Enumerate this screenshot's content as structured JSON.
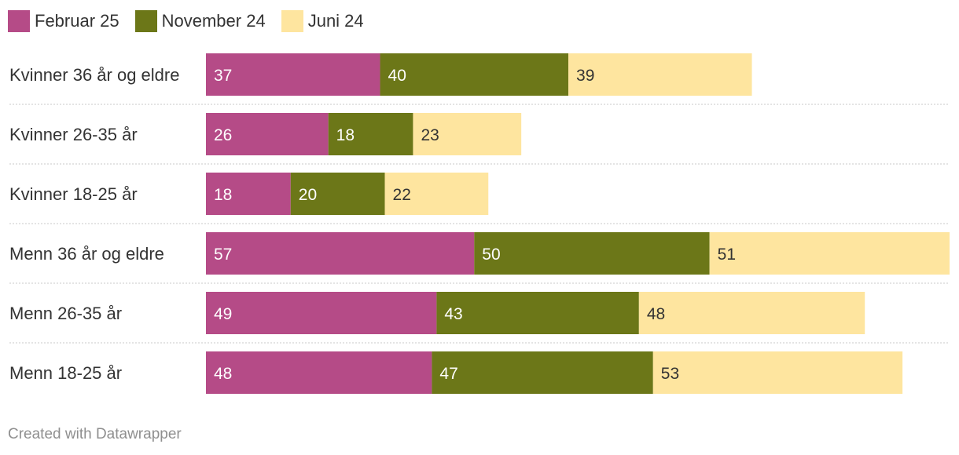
{
  "chart_data": {
    "type": "bar",
    "orientation": "horizontal",
    "stacked": true,
    "title": "",
    "xlabel": "",
    "ylabel": "",
    "categories": [
      "Kvinner 36 år og eldre",
      "Kvinner 26-35 år",
      "Kvinner 18-25 år",
      "Menn 36 år og eldre",
      "Menn 26-35 år",
      "Menn 18-25 år"
    ],
    "series": [
      {
        "name": "Februar 25",
        "color": "#b54b87",
        "label_color": "#ffffff",
        "values": [
          37,
          26,
          18,
          57,
          49,
          48
        ]
      },
      {
        "name": "November 24",
        "color": "#6c7718",
        "label_color": "#ffffff",
        "values": [
          40,
          18,
          20,
          50,
          43,
          47
        ]
      },
      {
        "name": "Juni 24",
        "color": "#fee59f",
        "label_color": "#333333",
        "values": [
          39,
          23,
          22,
          51,
          48,
          53
        ]
      }
    ],
    "xlim": [
      0,
      158
    ],
    "legend_position": "top-left",
    "grid": false
  },
  "credit": "Created with Datawrapper"
}
